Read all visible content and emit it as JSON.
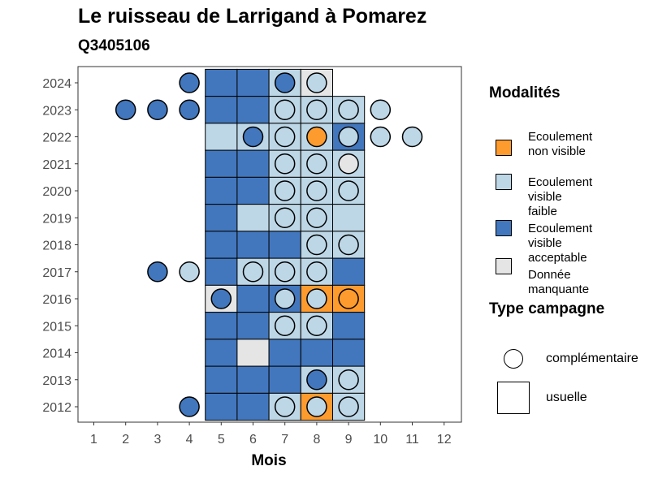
{
  "title": "Le ruisseau de Larrigand à Pomarez",
  "subtitle": "Q3405106",
  "chart_data": {
    "type": "heatmap",
    "xlabel": "Mois",
    "ylabel": "",
    "x_ticks": [
      1,
      2,
      3,
      4,
      5,
      6,
      7,
      8,
      9,
      10,
      11,
      12
    ],
    "y_ticks": [
      2012,
      2013,
      2014,
      2015,
      2016,
      2017,
      2018,
      2019,
      2020,
      2021,
      2022,
      2023,
      2024
    ],
    "colors": {
      "non_visible": "#fe9b2e",
      "visible_faible": "#bdd7e7",
      "visible_acceptable": "#4277bd",
      "manquante": "#e5e5e5"
    },
    "usuelle": [
      {
        "year": 2024,
        "month": 5,
        "mod": "visible_acceptable"
      },
      {
        "year": 2024,
        "month": 6,
        "mod": "visible_acceptable"
      },
      {
        "year": 2024,
        "month": 7,
        "mod": "visible_faible"
      },
      {
        "year": 2024,
        "month": 8,
        "mod": "manquante"
      },
      {
        "year": 2023,
        "month": 5,
        "mod": "visible_acceptable"
      },
      {
        "year": 2023,
        "month": 6,
        "mod": "visible_acceptable"
      },
      {
        "year": 2023,
        "month": 7,
        "mod": "visible_faible"
      },
      {
        "year": 2023,
        "month": 8,
        "mod": "visible_faible"
      },
      {
        "year": 2023,
        "month": 9,
        "mod": "visible_faible"
      },
      {
        "year": 2022,
        "month": 5,
        "mod": "visible_faible"
      },
      {
        "year": 2022,
        "month": 6,
        "mod": "visible_faible"
      },
      {
        "year": 2022,
        "month": 7,
        "mod": "visible_faible"
      },
      {
        "year": 2022,
        "month": 8,
        "mod": "visible_faible"
      },
      {
        "year": 2022,
        "month": 9,
        "mod": "visible_acceptable"
      },
      {
        "year": 2021,
        "month": 5,
        "mod": "visible_acceptable"
      },
      {
        "year": 2021,
        "month": 6,
        "mod": "visible_acceptable"
      },
      {
        "year": 2021,
        "month": 7,
        "mod": "visible_faible"
      },
      {
        "year": 2021,
        "month": 8,
        "mod": "visible_faible"
      },
      {
        "year": 2021,
        "month": 9,
        "mod": "visible_faible"
      },
      {
        "year": 2020,
        "month": 5,
        "mod": "visible_acceptable"
      },
      {
        "year": 2020,
        "month": 6,
        "mod": "visible_acceptable"
      },
      {
        "year": 2020,
        "month": 7,
        "mod": "visible_faible"
      },
      {
        "year": 2020,
        "month": 8,
        "mod": "visible_faible"
      },
      {
        "year": 2020,
        "month": 9,
        "mod": "visible_faible"
      },
      {
        "year": 2019,
        "month": 5,
        "mod": "visible_acceptable"
      },
      {
        "year": 2019,
        "month": 6,
        "mod": "visible_faible"
      },
      {
        "year": 2019,
        "month": 7,
        "mod": "visible_faible"
      },
      {
        "year": 2019,
        "month": 8,
        "mod": "visible_faible"
      },
      {
        "year": 2019,
        "month": 9,
        "mod": "visible_faible"
      },
      {
        "year": 2018,
        "month": 5,
        "mod": "visible_acceptable"
      },
      {
        "year": 2018,
        "month": 6,
        "mod": "visible_acceptable"
      },
      {
        "year": 2018,
        "month": 7,
        "mod": "visible_acceptable"
      },
      {
        "year": 2018,
        "month": 8,
        "mod": "visible_faible"
      },
      {
        "year": 2018,
        "month": 9,
        "mod": "visible_faible"
      },
      {
        "year": 2017,
        "month": 5,
        "mod": "visible_acceptable"
      },
      {
        "year": 2017,
        "month": 6,
        "mod": "visible_faible"
      },
      {
        "year": 2017,
        "month": 7,
        "mod": "visible_faible"
      },
      {
        "year": 2017,
        "month": 8,
        "mod": "visible_faible"
      },
      {
        "year": 2017,
        "month": 9,
        "mod": "visible_acceptable"
      },
      {
        "year": 2016,
        "month": 5,
        "mod": "manquante"
      },
      {
        "year": 2016,
        "month": 6,
        "mod": "visible_acceptable"
      },
      {
        "year": 2016,
        "month": 7,
        "mod": "visible_acceptable"
      },
      {
        "year": 2016,
        "month": 8,
        "mod": "non_visible"
      },
      {
        "year": 2016,
        "month": 9,
        "mod": "non_visible"
      },
      {
        "year": 2015,
        "month": 5,
        "mod": "visible_acceptable"
      },
      {
        "year": 2015,
        "month": 6,
        "mod": "visible_acceptable"
      },
      {
        "year": 2015,
        "month": 7,
        "mod": "visible_faible"
      },
      {
        "year": 2015,
        "month": 8,
        "mod": "visible_faible"
      },
      {
        "year": 2015,
        "month": 9,
        "mod": "visible_acceptable"
      },
      {
        "year": 2014,
        "month": 5,
        "mod": "visible_acceptable"
      },
      {
        "year": 2014,
        "month": 6,
        "mod": "manquante"
      },
      {
        "year": 2014,
        "month": 7,
        "mod": "visible_acceptable"
      },
      {
        "year": 2014,
        "month": 8,
        "mod": "visible_acceptable"
      },
      {
        "year": 2014,
        "month": 9,
        "mod": "visible_acceptable"
      },
      {
        "year": 2013,
        "month": 5,
        "mod": "visible_acceptable"
      },
      {
        "year": 2013,
        "month": 6,
        "mod": "visible_acceptable"
      },
      {
        "year": 2013,
        "month": 7,
        "mod": "visible_acceptable"
      },
      {
        "year": 2013,
        "month": 8,
        "mod": "visible_faible"
      },
      {
        "year": 2013,
        "month": 9,
        "mod": "visible_faible"
      },
      {
        "year": 2012,
        "month": 5,
        "mod": "visible_acceptable"
      },
      {
        "year": 2012,
        "month": 6,
        "mod": "visible_acceptable"
      },
      {
        "year": 2012,
        "month": 7,
        "mod": "visible_faible"
      },
      {
        "year": 2012,
        "month": 8,
        "mod": "non_visible"
      },
      {
        "year": 2012,
        "month": 9,
        "mod": "visible_faible"
      }
    ],
    "complementaire": [
      {
        "year": 2024,
        "month": 4,
        "mod": "visible_acceptable"
      },
      {
        "year": 2024,
        "month": 7,
        "mod": "visible_acceptable"
      },
      {
        "year": 2024,
        "month": 8,
        "mod": "visible_faible"
      },
      {
        "year": 2023,
        "month": 2,
        "mod": "visible_acceptable"
      },
      {
        "year": 2023,
        "month": 3,
        "mod": "visible_acceptable"
      },
      {
        "year": 2023,
        "month": 4,
        "mod": "visible_acceptable"
      },
      {
        "year": 2023,
        "month": 7,
        "mod": "visible_faible"
      },
      {
        "year": 2023,
        "month": 8,
        "mod": "visible_faible"
      },
      {
        "year": 2023,
        "month": 9,
        "mod": "visible_faible"
      },
      {
        "year": 2023,
        "month": 10,
        "mod": "visible_faible"
      },
      {
        "year": 2022,
        "month": 6,
        "mod": "visible_acceptable"
      },
      {
        "year": 2022,
        "month": 7,
        "mod": "visible_faible"
      },
      {
        "year": 2022,
        "month": 8,
        "mod": "non_visible"
      },
      {
        "year": 2022,
        "month": 9,
        "mod": "visible_faible"
      },
      {
        "year": 2022,
        "month": 10,
        "mod": "visible_faible"
      },
      {
        "year": 2022,
        "month": 11,
        "mod": "visible_faible"
      },
      {
        "year": 2021,
        "month": 7,
        "mod": "visible_faible"
      },
      {
        "year": 2021,
        "month": 8,
        "mod": "visible_faible"
      },
      {
        "year": 2021,
        "month": 9,
        "mod": "manquante"
      },
      {
        "year": 2020,
        "month": 7,
        "mod": "visible_faible"
      },
      {
        "year": 2020,
        "month": 8,
        "mod": "visible_faible"
      },
      {
        "year": 2020,
        "month": 9,
        "mod": "visible_faible"
      },
      {
        "year": 2019,
        "month": 7,
        "mod": "visible_faible"
      },
      {
        "year": 2019,
        "month": 8,
        "mod": "visible_faible"
      },
      {
        "year": 2018,
        "month": 8,
        "mod": "visible_faible"
      },
      {
        "year": 2018,
        "month": 9,
        "mod": "visible_faible"
      },
      {
        "year": 2017,
        "month": 3,
        "mod": "visible_acceptable"
      },
      {
        "year": 2017,
        "month": 4,
        "mod": "visible_faible"
      },
      {
        "year": 2017,
        "month": 6,
        "mod": "visible_faible"
      },
      {
        "year": 2017,
        "month": 7,
        "mod": "visible_faible"
      },
      {
        "year": 2017,
        "month": 8,
        "mod": "visible_faible"
      },
      {
        "year": 2016,
        "month": 5,
        "mod": "visible_acceptable"
      },
      {
        "year": 2016,
        "month": 7,
        "mod": "visible_faible"
      },
      {
        "year": 2016,
        "month": 8,
        "mod": "visible_faible"
      },
      {
        "year": 2016,
        "month": 9,
        "mod": "non_visible"
      },
      {
        "year": 2015,
        "month": 7,
        "mod": "visible_faible"
      },
      {
        "year": 2015,
        "month": 8,
        "mod": "visible_faible"
      },
      {
        "year": 2013,
        "month": 8,
        "mod": "visible_acceptable"
      },
      {
        "year": 2013,
        "month": 9,
        "mod": "visible_faible"
      },
      {
        "year": 2012,
        "month": 4,
        "mod": "visible_acceptable"
      },
      {
        "year": 2012,
        "month": 7,
        "mod": "visible_faible"
      },
      {
        "year": 2012,
        "month": 8,
        "mod": "visible_faible"
      },
      {
        "year": 2012,
        "month": 9,
        "mod": "visible_faible"
      }
    ]
  },
  "legend": {
    "modalites_title": "Modalités",
    "modalites": [
      {
        "key": "non_visible",
        "lines": [
          "Ecoulement",
          "non visible"
        ]
      },
      {
        "key": "visible_faible",
        "lines": [
          "Ecoulement",
          "visible",
          "faible"
        ]
      },
      {
        "key": "visible_acceptable",
        "lines": [
          "Ecoulement",
          "visible",
          "acceptable"
        ]
      },
      {
        "key": "manquante",
        "lines": [
          "Donnée",
          "manquante"
        ]
      }
    ],
    "campagne_title": "Type campagne",
    "campagne": [
      {
        "shape": "circle",
        "label": "complémentaire"
      },
      {
        "shape": "square",
        "label": "usuelle"
      }
    ]
  }
}
